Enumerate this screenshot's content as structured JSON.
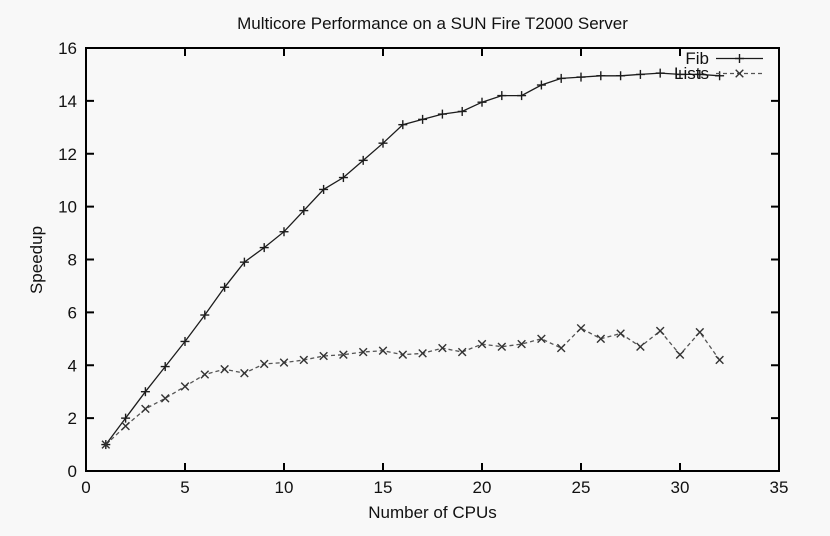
{
  "chart_data": {
    "type": "line",
    "title": "Multicore Performance on a SUN Fire T2000 Server",
    "xlabel": "Number of CPUs",
    "ylabel": "Speedup",
    "xlim": [
      0,
      35
    ],
    "ylim": [
      0,
      16
    ],
    "xticks": [
      0,
      5,
      10,
      15,
      20,
      25,
      30,
      35
    ],
    "yticks": [
      0,
      2,
      4,
      6,
      8,
      10,
      12,
      14,
      16
    ],
    "grid": false,
    "legend_position": "top-right-inside",
    "background": "#f8f8f8",
    "axis_color": "#000000",
    "x": [
      1,
      2,
      3,
      4,
      5,
      6,
      7,
      8,
      9,
      10,
      11,
      12,
      13,
      14,
      15,
      16,
      17,
      18,
      19,
      20,
      21,
      22,
      23,
      24,
      25,
      26,
      27,
      28,
      29,
      30,
      31,
      32
    ],
    "series": [
      {
        "name": "Fib",
        "marker": "plus",
        "line_style": "solid",
        "color": "#1c1c1c",
        "marker_color": "#1c1c1c",
        "values": [
          1.0,
          2.0,
          3.0,
          3.95,
          4.9,
          5.9,
          6.95,
          7.9,
          8.45,
          9.05,
          9.85,
          10.65,
          11.1,
          11.75,
          12.4,
          13.1,
          13.3,
          13.5,
          13.6,
          13.95,
          14.2,
          14.2,
          14.6,
          14.85,
          14.9,
          14.95,
          14.95,
          15.0,
          15.05,
          15.0,
          15.0,
          14.95
        ]
      },
      {
        "name": "Lists",
        "marker": "x",
        "line_style": "dashed",
        "color": "#555555",
        "marker_color": "#333333",
        "values": [
          1.0,
          1.7,
          2.35,
          2.75,
          3.2,
          3.65,
          3.85,
          3.7,
          4.05,
          4.1,
          4.2,
          4.35,
          4.4,
          4.5,
          4.55,
          4.4,
          4.45,
          4.65,
          4.5,
          4.8,
          4.7,
          4.8,
          5.0,
          4.65,
          5.4,
          5.0,
          5.2,
          4.7,
          5.3,
          4.4,
          5.25,
          4.2
        ]
      }
    ]
  }
}
